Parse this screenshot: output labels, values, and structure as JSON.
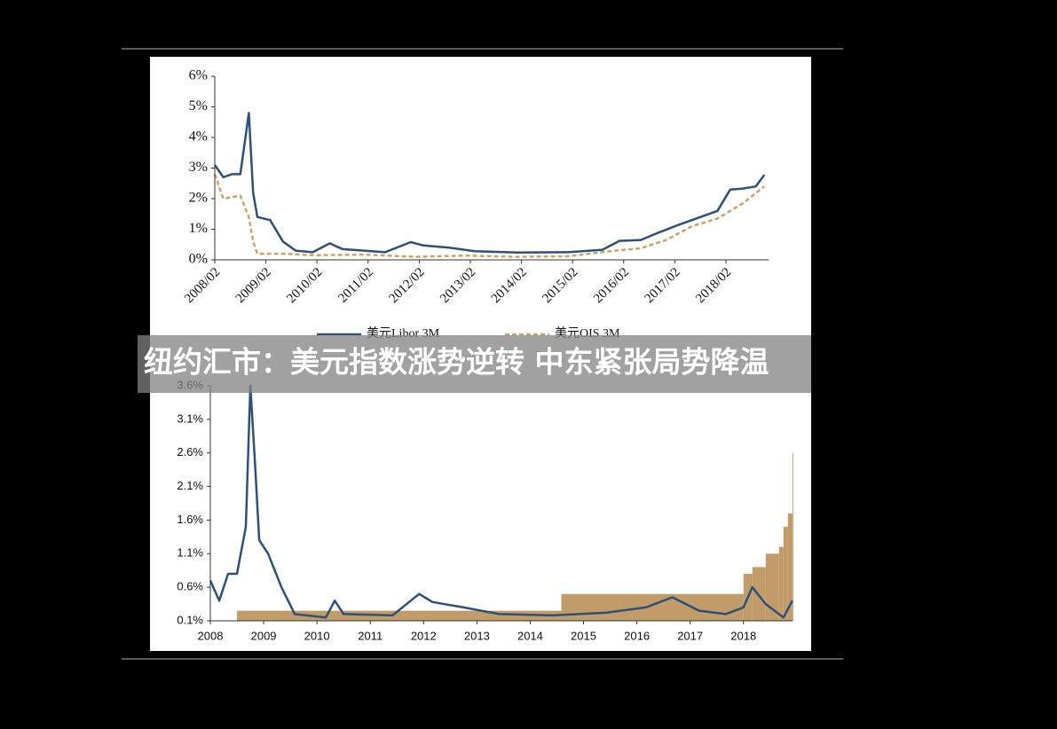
{
  "caption": "纽约汇市：美元指数涨势逆转 中东紧张局势降温",
  "chart_data": [
    {
      "type": "line",
      "x_format": "YYYY/MM",
      "xlim": [
        "2008/02",
        "2018/12"
      ],
      "xticks": [
        "2008/02",
        "2009/02",
        "2010/02",
        "2011/02",
        "2012/02",
        "2013/02",
        "2014/02",
        "2015/02",
        "2016/02",
        "2017/02",
        "2018/02"
      ],
      "ylim": [
        0,
        6
      ],
      "yticks": [
        {
          "value": 0,
          "label": "0%"
        },
        {
          "value": 1,
          "label": "1%"
        },
        {
          "value": 2,
          "label": "2%"
        },
        {
          "value": 3,
          "label": "3%"
        },
        {
          "value": 4,
          "label": "4%"
        },
        {
          "value": 5,
          "label": "5%"
        },
        {
          "value": 6,
          "label": "6%"
        }
      ],
      "series": [
        {
          "name": "美元Libor 3M",
          "color": "#2e5079",
          "dash": false,
          "x": [
            "2008/02",
            "2008/04",
            "2008/06",
            "2008/08",
            "2008/09",
            "2008/10",
            "2008/11",
            "2008/12",
            "2009/03",
            "2009/06",
            "2009/09",
            "2010/01",
            "2010/05",
            "2010/08",
            "2011/01",
            "2011/06",
            "2011/12",
            "2012/03",
            "2012/09",
            "2013/03",
            "2014/01",
            "2015/01",
            "2015/09",
            "2016/01",
            "2016/06",
            "2016/10",
            "2017/03",
            "2017/06",
            "2017/12",
            "2018/03",
            "2018/06",
            "2018/09",
            "2018/11"
          ],
          "values": [
            3.1,
            2.7,
            2.8,
            2.8,
            3.8,
            4.8,
            2.2,
            1.4,
            1.3,
            0.6,
            0.3,
            0.25,
            0.54,
            0.35,
            0.3,
            0.25,
            0.58,
            0.47,
            0.4,
            0.28,
            0.24,
            0.25,
            0.33,
            0.62,
            0.65,
            0.88,
            1.15,
            1.3,
            1.6,
            2.3,
            2.33,
            2.4,
            2.78
          ]
        },
        {
          "name": "美元OIS 3M",
          "color": "#c9a46b",
          "dash": true,
          "x": [
            "2008/02",
            "2008/04",
            "2008/08",
            "2008/10",
            "2008/11",
            "2008/12",
            "2009/06",
            "2010/01",
            "2011/01",
            "2012/01",
            "2013/01",
            "2014/01",
            "2015/01",
            "2015/12",
            "2016/06",
            "2016/12",
            "2017/06",
            "2017/12",
            "2018/06",
            "2018/11"
          ],
          "values": [
            2.8,
            2.0,
            2.1,
            1.4,
            0.6,
            0.2,
            0.2,
            0.15,
            0.17,
            0.1,
            0.14,
            0.1,
            0.12,
            0.3,
            0.38,
            0.65,
            1.1,
            1.35,
            1.85,
            2.4
          ]
        }
      ]
    },
    {
      "type": "line",
      "x_format": "YYYY/MM",
      "xlim": [
        2008,
        2018.92
      ],
      "xticks": [
        2008,
        2009,
        2010,
        2011,
        2012,
        2013,
        2014,
        2015,
        2016,
        2017,
        2018
      ],
      "ylim": [
        0.1,
        3.6
      ],
      "yticks": [
        {
          "value": 0.1,
          "label": "0.1%"
        },
        {
          "value": 0.6,
          "label": "0.6%"
        },
        {
          "value": 1.1,
          "label": "1.1%"
        },
        {
          "value": 1.6,
          "label": "1.6%"
        },
        {
          "value": 2.1,
          "label": "2.1%"
        },
        {
          "value": 2.6,
          "label": "2.6%"
        },
        {
          "value": 3.1,
          "label": "3.1%"
        },
        {
          "value": 3.6,
          "label": "3.6%"
        }
      ],
      "series": [
        {
          "type": "step",
          "color": "#c19c68",
          "x": [
            "2008/07",
            "2014/08",
            "2018/01",
            "2018/03",
            "2018/06",
            "2018/09",
            "2018/10",
            "2018/11",
            "2018/12"
          ],
          "values": [
            0.25,
            0.5,
            0.8,
            0.9,
            1.1,
            1.2,
            1.5,
            1.7,
            2.6
          ]
        },
        {
          "type": "line",
          "color": "#2e5079",
          "x": [
            "2008/01",
            "2008/03",
            "2008/05",
            "2008/07",
            "2008/09",
            "2008/10",
            "2008/11",
            "2008/12",
            "2009/02",
            "2009/05",
            "2009/08",
            "2010/03",
            "2010/05",
            "2010/07",
            "2011/06",
            "2011/12",
            "2012/03",
            "2012/10",
            "2013/06",
            "2014/06",
            "2015/06",
            "2016/03",
            "2016/09",
            "2017/03",
            "2017/09",
            "2018/01",
            "2018/03",
            "2018/06",
            "2018/10",
            "2018/12"
          ],
          "values": [
            0.7,
            0.4,
            0.8,
            0.8,
            1.5,
            3.6,
            2.5,
            1.3,
            1.1,
            0.6,
            0.2,
            0.15,
            0.4,
            0.2,
            0.18,
            0.5,
            0.38,
            0.3,
            0.2,
            0.18,
            0.22,
            0.3,
            0.45,
            0.25,
            0.2,
            0.3,
            0.6,
            0.35,
            0.15,
            0.4
          ]
        }
      ]
    }
  ]
}
